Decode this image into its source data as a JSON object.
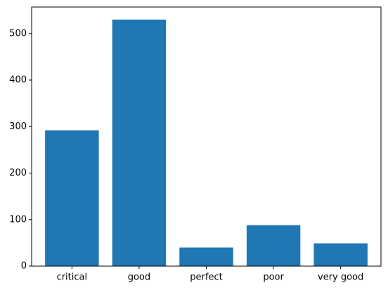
{
  "chart_data": {
    "type": "bar",
    "categories": [
      "critical",
      "good",
      "perfect",
      "poor",
      "very good"
    ],
    "values": [
      292,
      530,
      40,
      88,
      49
    ],
    "title": "",
    "xlabel": "",
    "ylabel": "",
    "ylim": [
      0,
      557
    ],
    "yticks": [
      0,
      100,
      200,
      300,
      400,
      500
    ],
    "grid": false,
    "legend": "none",
    "colors": {
      "bar": "#1f77b4",
      "axis": "#000000",
      "background": "#ffffff"
    }
  }
}
